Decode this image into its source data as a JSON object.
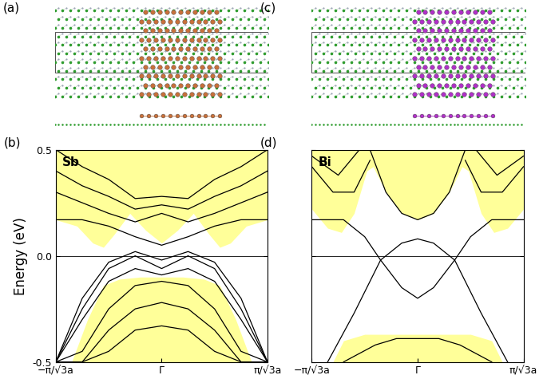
{
  "structures": [
    {
      "label": "(a)",
      "colors": [
        "#2e9c2e",
        "#9ea6b8",
        "#c8703a"
      ]
    },
    {
      "label": "(c)",
      "colors": [
        "#2e9c2e",
        "#9ea6b8",
        "#b030c8"
      ]
    }
  ],
  "chart_data": [
    {
      "type": "line",
      "label": "(b)",
      "title": "Sb",
      "ylabel": "Energy (eV)",
      "color": "#000000",
      "tick_labels": true,
      "xlim": [
        -1,
        1
      ],
      "ylim": [
        -0.5,
        0.5
      ],
      "xticks": [
        {
          "value": -1,
          "label": "−π/√3a"
        },
        {
          "value": 0,
          "label": "Γ"
        },
        {
          "value": 1,
          "label": "π/√3a"
        }
      ],
      "yticks": [
        -0.5,
        0.0,
        0.5
      ],
      "reference_line": 0.0,
      "areas": [
        {
          "color": "#ffff99",
          "x": [
            -1,
            -0.8,
            -0.65,
            -0.55,
            -0.45,
            -0.3,
            -0.15,
            0,
            0.15,
            0.3,
            0.45,
            0.55,
            0.65,
            0.8,
            1
          ],
          "lower": [
            0.17,
            0.14,
            0.06,
            0.04,
            0.1,
            0.2,
            0.12,
            0.06,
            0.12,
            0.2,
            0.1,
            0.04,
            0.06,
            0.14,
            0.17
          ],
          "upper": [
            0.5,
            0.5,
            0.5,
            0.5,
            0.5,
            0.5,
            0.5,
            0.5,
            0.5,
            0.5,
            0.5,
            0.5,
            0.5,
            0.5,
            0.5
          ]
        },
        {
          "color": "#ffff99",
          "x": [
            -1,
            -0.85,
            -0.7,
            -0.55,
            -0.4,
            -0.2,
            0,
            0.2,
            0.4,
            0.55,
            0.7,
            0.85,
            1
          ],
          "lower": [
            -0.5,
            -0.5,
            -0.5,
            -0.5,
            -0.5,
            -0.5,
            -0.5,
            -0.5,
            -0.5,
            -0.5,
            -0.5,
            -0.5,
            -0.5
          ],
          "upper": [
            -0.5,
            -0.5,
            -0.3,
            -0.14,
            -0.11,
            -0.1,
            -0.1,
            -0.1,
            -0.11,
            -0.14,
            -0.3,
            -0.5,
            -0.5
          ]
        }
      ],
      "series": [
        {
          "x": [
            -1,
            -0.75,
            -0.5,
            -0.25,
            0,
            0.25,
            0.5,
            0.75,
            1
          ],
          "values": [
            0.17,
            0.17,
            0.14,
            0.09,
            0.05,
            0.09,
            0.14,
            0.17,
            0.17
          ]
        },
        {
          "x": [
            -1,
            -0.75,
            -0.5,
            -0.25,
            0,
            0.25,
            0.5,
            0.75,
            1
          ],
          "values": [
            0.3,
            0.25,
            0.2,
            0.16,
            0.2,
            0.16,
            0.2,
            0.25,
            0.3
          ]
        },
        {
          "x": [
            -1,
            -0.75,
            -0.5,
            -0.25,
            0,
            0.25,
            0.5,
            0.75,
            1
          ],
          "values": [
            0.4,
            0.33,
            0.28,
            0.22,
            0.24,
            0.22,
            0.28,
            0.33,
            0.4
          ]
        },
        {
          "x": [
            -1,
            -0.75,
            -0.5,
            -0.25,
            0,
            0.25,
            0.5,
            0.75,
            1
          ],
          "values": [
            0.5,
            0.42,
            0.36,
            0.27,
            0.28,
            0.27,
            0.36,
            0.42,
            0.5
          ]
        },
        {
          "x": [
            -1,
            -0.75,
            -0.5,
            -0.25,
            0,
            0.25,
            0.5,
            0.75,
            1
          ],
          "values": [
            -0.5,
            -0.2,
            -0.03,
            0.02,
            -0.02,
            0.02,
            -0.03,
            -0.2,
            -0.5
          ]
        },
        {
          "x": [
            -1,
            -0.75,
            -0.5,
            -0.25,
            0,
            0.25,
            0.5,
            0.75,
            1
          ],
          "values": [
            -0.5,
            -0.25,
            -0.06,
            0.0,
            -0.06,
            0.0,
            -0.06,
            -0.25,
            -0.5
          ]
        },
        {
          "x": [
            -1,
            -0.75,
            -0.5,
            -0.25,
            0,
            0.25,
            0.5,
            0.75,
            1
          ],
          "values": [
            -0.5,
            -0.3,
            -0.12,
            -0.06,
            -0.09,
            -0.06,
            -0.12,
            -0.3,
            -0.5
          ]
        },
        {
          "x": [
            -1,
            -0.75,
            -0.5,
            -0.25,
            0,
            0.25,
            0.5,
            0.75,
            1
          ],
          "values": [
            -0.5,
            -0.45,
            -0.25,
            -0.14,
            -0.12,
            -0.14,
            -0.25,
            -0.45,
            -0.5
          ]
        },
        {
          "x": [
            -1,
            -0.75,
            -0.5,
            -0.25,
            0,
            0.25,
            0.5,
            0.75,
            1
          ],
          "values": [
            -0.5,
            -0.5,
            -0.35,
            -0.25,
            -0.22,
            -0.25,
            -0.35,
            -0.5,
            -0.5
          ]
        },
        {
          "x": [
            -1,
            -0.75,
            -0.5,
            -0.25,
            0,
            0.25,
            0.5,
            0.75,
            1
          ],
          "values": [
            -0.5,
            -0.5,
            -0.45,
            -0.35,
            -0.33,
            -0.35,
            -0.45,
            -0.5,
            -0.5
          ]
        }
      ]
    },
    {
      "type": "line",
      "label": "(d)",
      "title": "Bi",
      "color": "#000000",
      "tick_labels": "x",
      "xlim": [
        -1,
        1
      ],
      "ylim": [
        -0.5,
        0.5
      ],
      "xticks": [
        {
          "value": -1,
          "label": "−π/√3a"
        },
        {
          "value": 0,
          "label": "Γ"
        },
        {
          "value": 1,
          "label": "π/√3a"
        }
      ],
      "yticks": [
        -0.5,
        0.0,
        0.5
      ],
      "reference_line": 0.0,
      "areas": [
        {
          "color": "#ffff99",
          "x": [
            -1,
            -0.85,
            -0.72,
            -0.6,
            -0.48,
            -0.42,
            -0.3,
            -0.15,
            0,
            0.15,
            0.3,
            0.42,
            0.48,
            0.6,
            0.72,
            0.85,
            1
          ],
          "lower": [
            0.22,
            0.13,
            0.11,
            0.2,
            0.4,
            0.42,
            0.3,
            0.2,
            0.17,
            0.2,
            0.3,
            0.42,
            0.4,
            0.2,
            0.11,
            0.13,
            0.22
          ],
          "upper": [
            0.5,
            0.5,
            0.5,
            0.5,
            0.5,
            0.5,
            0.5,
            0.5,
            0.5,
            0.5,
            0.5,
            0.5,
            0.5,
            0.5,
            0.5,
            0.5,
            0.5
          ]
        },
        {
          "color": "#ffff99",
          "x": [
            -1,
            -0.8,
            -0.7,
            -0.5,
            0,
            0.5,
            0.7,
            0.8,
            1
          ],
          "lower": [
            -0.5,
            -0.5,
            -0.5,
            -0.5,
            -0.5,
            -0.5,
            -0.5,
            -0.5,
            -0.5
          ],
          "upper": [
            -0.5,
            -0.5,
            -0.4,
            -0.37,
            -0.37,
            -0.37,
            -0.4,
            -0.5,
            -0.5
          ]
        }
      ],
      "series": [
        {
          "x": [
            -1,
            -0.7,
            -0.5,
            -0.35,
            -0.15,
            0,
            0.15,
            0.35,
            0.5,
            0.7,
            1
          ],
          "values": [
            0.17,
            0.17,
            0.09,
            -0.02,
            -0.15,
            -0.2,
            -0.15,
            -0.02,
            0.09,
            0.17,
            0.17
          ]
        },
        {
          "x": [
            -0.85,
            -0.6,
            -0.35,
            -0.15,
            0,
            0.15,
            0.35,
            0.6,
            0.85
          ],
          "values": [
            -0.5,
            -0.27,
            -0.02,
            0.06,
            0.08,
            0.06,
            -0.02,
            -0.27,
            -0.5
          ]
        },
        {
          "x": [
            -0.45,
            -0.3,
            -0.15,
            0,
            0.15,
            0.3,
            0.45
          ],
          "values": [
            0.5,
            0.3,
            0.2,
            0.17,
            0.2,
            0.3,
            0.5
          ]
        },
        {
          "x": [
            -0.7,
            -0.4,
            -0.2,
            0,
            0.2,
            0.4,
            0.7
          ],
          "values": [
            -0.5,
            -0.42,
            -0.39,
            -0.39,
            -0.39,
            -0.42,
            -0.5
          ]
        },
        {
          "x": [
            -1,
            -0.8,
            -0.6,
            -0.45
          ],
          "values": [
            0.42,
            0.3,
            0.3,
            0.45
          ]
        },
        {
          "x": [
            0.45,
            0.6,
            0.8,
            1
          ],
          "values": [
            0.45,
            0.3,
            0.3,
            0.42
          ]
        },
        {
          "x": [
            -1,
            -0.75,
            -0.55
          ],
          "values": [
            0.47,
            0.38,
            0.5
          ]
        },
        {
          "x": [
            0.55,
            0.75,
            1
          ],
          "values": [
            0.5,
            0.38,
            0.47
          ]
        }
      ]
    }
  ]
}
